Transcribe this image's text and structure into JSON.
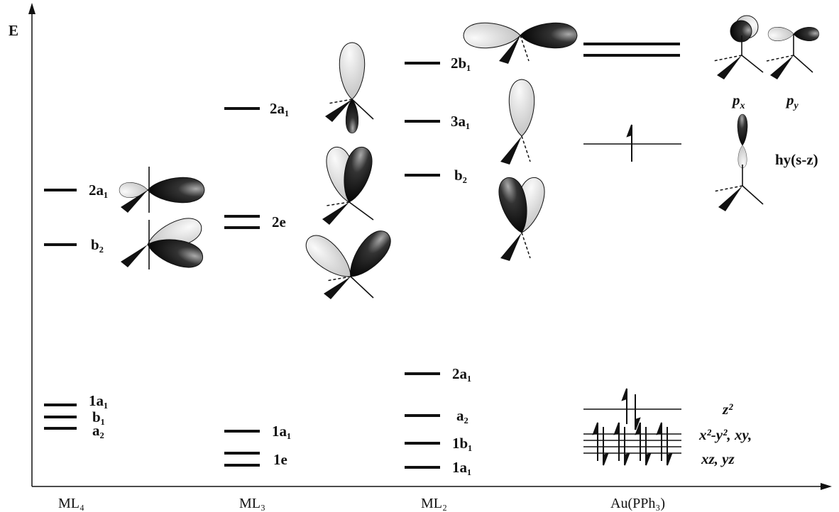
{
  "axis": {
    "label": "E"
  },
  "columns": [
    {
      "label": "ML₄",
      "levels": [
        "2a₁",
        "b₂",
        "1a₁",
        "b₁",
        "a₂"
      ]
    },
    {
      "label": "ML₃",
      "levels": [
        "2a₁",
        "2e",
        "1a₁",
        "1e"
      ]
    },
    {
      "label": "ML₂",
      "levels": [
        "2b₁",
        "3a₁",
        "b₂",
        "2a₁",
        "a₂",
        "1b₁",
        "1a₁"
      ]
    },
    {
      "label": "Au(PPh₃)"
    }
  ],
  "orbital_labels": {
    "px": {
      "base": "p",
      "sub": "x"
    },
    "py": {
      "base": "p",
      "sub": "y"
    },
    "hybrid": "hy(s-z)",
    "z2": "z²",
    "xy": "x²-y², xy,",
    "xz": "xz, yz"
  }
}
